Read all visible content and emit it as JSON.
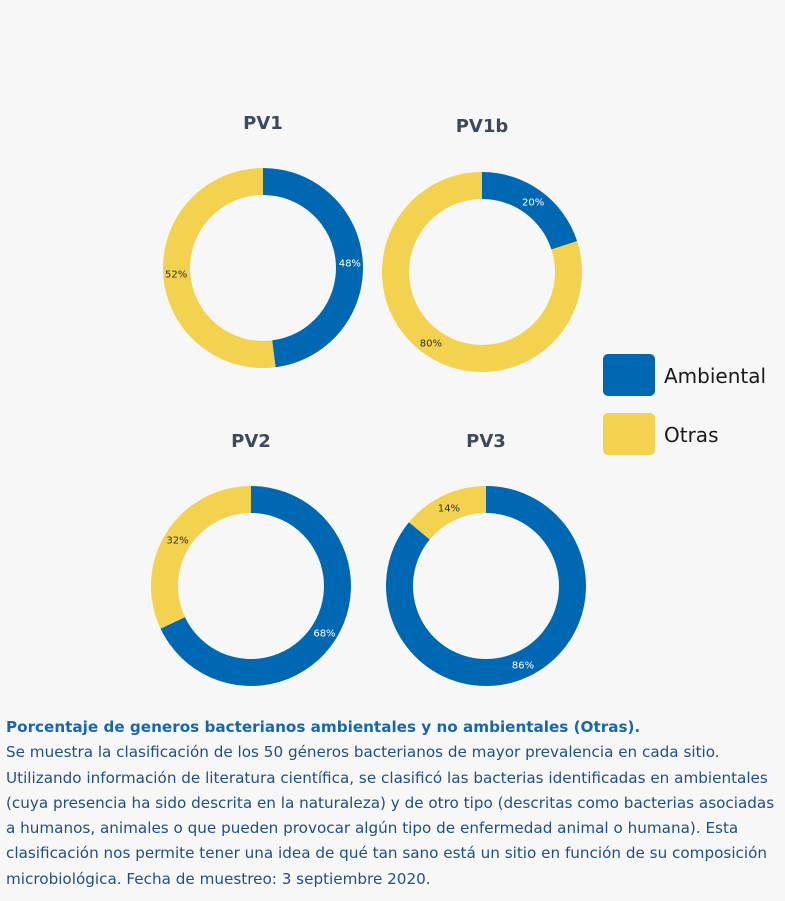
{
  "chart_data": {
    "type": "pie",
    "subtype": "donut",
    "legend": {
      "placement": "right",
      "entries": [
        {
          "label": "Ambiental",
          "color": "#0068b3"
        },
        {
          "label": "Otras",
          "color": "#f2d24e"
        }
      ]
    },
    "charts": [
      {
        "title": "PV1",
        "slices": [
          {
            "label": "Ambiental",
            "value": 48,
            "text": "48%"
          },
          {
            "label": "Otras",
            "value": 52,
            "text": "52%"
          }
        ]
      },
      {
        "title": "PV1b",
        "slices": [
          {
            "label": "Ambiental",
            "value": 20,
            "text": "20%"
          },
          {
            "label": "Otras",
            "value": 80,
            "text": "80%"
          }
        ]
      },
      {
        "title": "PV2",
        "slices": [
          {
            "label": "Ambiental",
            "value": 68,
            "text": "68%"
          },
          {
            "label": "Otras",
            "value": 32,
            "text": "32%"
          }
        ]
      },
      {
        "title": "PV3",
        "slices": [
          {
            "label": "Ambiental",
            "value": 86,
            "text": "86%"
          },
          {
            "label": "Otras",
            "value": 14,
            "text": "14%"
          }
        ]
      }
    ]
  },
  "caption": {
    "title": "Porcentaje de generos bacterianos ambientales y no ambientales (Otras).",
    "body": "Se muestra la clasificación de los 50 géneros bacterianos de mayor prevalencia en cada sitio. Utilizando información de literatura científica, se clasificó las bacterias identificadas en ambientales (cuya presencia ha sido descrita en la naturaleza) y de otro tipo (descritas como bacterias asociadas a humanos, animales o que pueden provocar algún tipo de enfermedad animal o humana). Esta clasificación nos permite tener una idea de qué tan sano está un sitio en función de su composición microbiológica. Fecha de muestreo: 3 septiembre 2020."
  }
}
